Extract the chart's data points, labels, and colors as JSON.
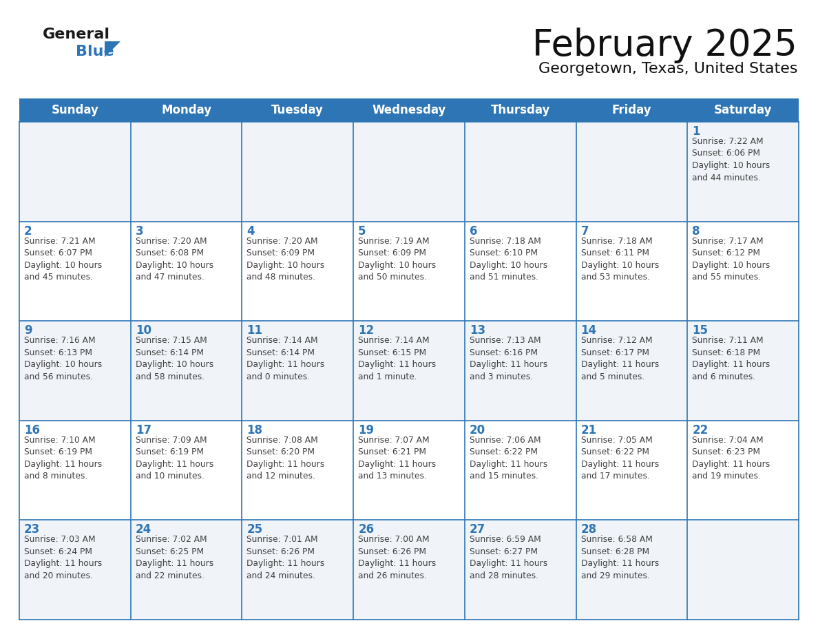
{
  "title": "February 2025",
  "subtitle": "Georgetown, Texas, United States",
  "header_color": "#2E75B6",
  "header_text_color": "#FFFFFF",
  "cell_border_color": "#2E75B6",
  "day_number_color": "#2E75B6",
  "info_text_color": "#404040",
  "background_color": "#FFFFFF",
  "cell_bg_light": "#f0f4f8",
  "cell_bg_white": "#FFFFFF",
  "days_of_week": [
    "Sunday",
    "Monday",
    "Tuesday",
    "Wednesday",
    "Thursday",
    "Friday",
    "Saturday"
  ],
  "logo_general_color": "#1a1a1a",
  "logo_blue_color": "#2E75B6",
  "weeks": [
    [
      {
        "day": "",
        "info": ""
      },
      {
        "day": "",
        "info": ""
      },
      {
        "day": "",
        "info": ""
      },
      {
        "day": "",
        "info": ""
      },
      {
        "day": "",
        "info": ""
      },
      {
        "day": "",
        "info": ""
      },
      {
        "day": "1",
        "info": "Sunrise: 7:22 AM\nSunset: 6:06 PM\nDaylight: 10 hours\nand 44 minutes."
      }
    ],
    [
      {
        "day": "2",
        "info": "Sunrise: 7:21 AM\nSunset: 6:07 PM\nDaylight: 10 hours\nand 45 minutes."
      },
      {
        "day": "3",
        "info": "Sunrise: 7:20 AM\nSunset: 6:08 PM\nDaylight: 10 hours\nand 47 minutes."
      },
      {
        "day": "4",
        "info": "Sunrise: 7:20 AM\nSunset: 6:09 PM\nDaylight: 10 hours\nand 48 minutes."
      },
      {
        "day": "5",
        "info": "Sunrise: 7:19 AM\nSunset: 6:09 PM\nDaylight: 10 hours\nand 50 minutes."
      },
      {
        "day": "6",
        "info": "Sunrise: 7:18 AM\nSunset: 6:10 PM\nDaylight: 10 hours\nand 51 minutes."
      },
      {
        "day": "7",
        "info": "Sunrise: 7:18 AM\nSunset: 6:11 PM\nDaylight: 10 hours\nand 53 minutes."
      },
      {
        "day": "8",
        "info": "Sunrise: 7:17 AM\nSunset: 6:12 PM\nDaylight: 10 hours\nand 55 minutes."
      }
    ],
    [
      {
        "day": "9",
        "info": "Sunrise: 7:16 AM\nSunset: 6:13 PM\nDaylight: 10 hours\nand 56 minutes."
      },
      {
        "day": "10",
        "info": "Sunrise: 7:15 AM\nSunset: 6:14 PM\nDaylight: 10 hours\nand 58 minutes."
      },
      {
        "day": "11",
        "info": "Sunrise: 7:14 AM\nSunset: 6:14 PM\nDaylight: 11 hours\nand 0 minutes."
      },
      {
        "day": "12",
        "info": "Sunrise: 7:14 AM\nSunset: 6:15 PM\nDaylight: 11 hours\nand 1 minute."
      },
      {
        "day": "13",
        "info": "Sunrise: 7:13 AM\nSunset: 6:16 PM\nDaylight: 11 hours\nand 3 minutes."
      },
      {
        "day": "14",
        "info": "Sunrise: 7:12 AM\nSunset: 6:17 PM\nDaylight: 11 hours\nand 5 minutes."
      },
      {
        "day": "15",
        "info": "Sunrise: 7:11 AM\nSunset: 6:18 PM\nDaylight: 11 hours\nand 6 minutes."
      }
    ],
    [
      {
        "day": "16",
        "info": "Sunrise: 7:10 AM\nSunset: 6:19 PM\nDaylight: 11 hours\nand 8 minutes."
      },
      {
        "day": "17",
        "info": "Sunrise: 7:09 AM\nSunset: 6:19 PM\nDaylight: 11 hours\nand 10 minutes."
      },
      {
        "day": "18",
        "info": "Sunrise: 7:08 AM\nSunset: 6:20 PM\nDaylight: 11 hours\nand 12 minutes."
      },
      {
        "day": "19",
        "info": "Sunrise: 7:07 AM\nSunset: 6:21 PM\nDaylight: 11 hours\nand 13 minutes."
      },
      {
        "day": "20",
        "info": "Sunrise: 7:06 AM\nSunset: 6:22 PM\nDaylight: 11 hours\nand 15 minutes."
      },
      {
        "day": "21",
        "info": "Sunrise: 7:05 AM\nSunset: 6:22 PM\nDaylight: 11 hours\nand 17 minutes."
      },
      {
        "day": "22",
        "info": "Sunrise: 7:04 AM\nSunset: 6:23 PM\nDaylight: 11 hours\nand 19 minutes."
      }
    ],
    [
      {
        "day": "23",
        "info": "Sunrise: 7:03 AM\nSunset: 6:24 PM\nDaylight: 11 hours\nand 20 minutes."
      },
      {
        "day": "24",
        "info": "Sunrise: 7:02 AM\nSunset: 6:25 PM\nDaylight: 11 hours\nand 22 minutes."
      },
      {
        "day": "25",
        "info": "Sunrise: 7:01 AM\nSunset: 6:26 PM\nDaylight: 11 hours\nand 24 minutes."
      },
      {
        "day": "26",
        "info": "Sunrise: 7:00 AM\nSunset: 6:26 PM\nDaylight: 11 hours\nand 26 minutes."
      },
      {
        "day": "27",
        "info": "Sunrise: 6:59 AM\nSunset: 6:27 PM\nDaylight: 11 hours\nand 28 minutes."
      },
      {
        "day": "28",
        "info": "Sunrise: 6:58 AM\nSunset: 6:28 PM\nDaylight: 11 hours\nand 29 minutes."
      },
      {
        "day": "",
        "info": ""
      }
    ]
  ]
}
